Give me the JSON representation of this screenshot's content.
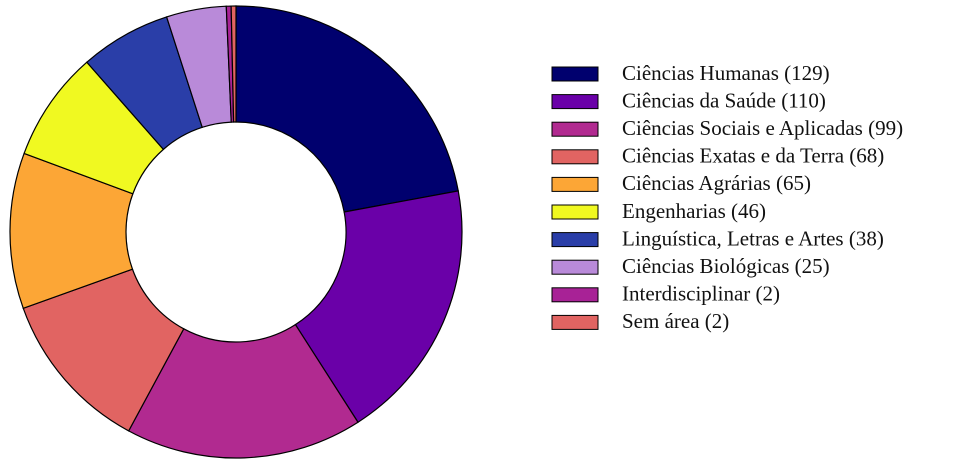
{
  "chart_data": {
    "type": "donut",
    "categories": [
      "Ciências Humanas (129)",
      "Ciências da Saúde (110)",
      "Ciências Sociais e Aplicadas (99)",
      "Ciências Exatas e da Terra (68)",
      "Ciências Agrárias (65)",
      "Engenharias (46)",
      "Linguística, Letras e Artes (38)",
      "Ciências Biológicas (25)",
      "Interdisciplinar (2)",
      "Sem área (2)"
    ],
    "values": [
      129,
      110,
      99,
      68,
      65,
      46,
      38,
      25,
      2,
      2
    ],
    "colors": [
      "#00006e",
      "#6a00a8",
      "#b12a90",
      "#e16462",
      "#fca636",
      "#f0f921",
      "#2a3ea8",
      "#b98ad9",
      "#a82296",
      "#e16462"
    ],
    "legend": "right"
  }
}
